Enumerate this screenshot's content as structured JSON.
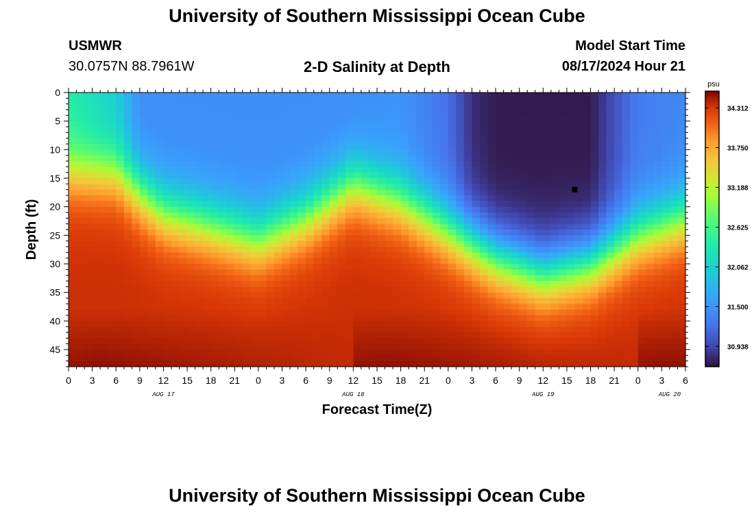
{
  "header": {
    "title": "University of Southern Mississippi Ocean Cube",
    "station": "USMWR",
    "coordinates": "30.0757N  88.7961W",
    "plot_title": "2-D Salinity at Depth",
    "model_start_label": "Model Start Time",
    "model_start_value": "08/17/2024 Hour 21"
  },
  "footer": {
    "title": "University of Southern Mississippi Ocean Cube"
  },
  "chart_data": {
    "type": "heatmap",
    "title": "2-D Salinity at Depth",
    "xlabel": "Forecast Time(Z)",
    "ylabel": "Depth (ft)",
    "x_tick_labels": [
      "0",
      "3",
      "6",
      "9",
      "12",
      "15",
      "18",
      "21",
      "0",
      "3",
      "6",
      "9",
      "12",
      "15",
      "18",
      "21",
      "0",
      "3",
      "6",
      "9",
      "12",
      "15",
      "18",
      "21",
      "0",
      "3",
      "6"
    ],
    "x_range_hours": [
      0,
      78
    ],
    "day_labels": [
      {
        "label": "AUG 17",
        "hour": 12
      },
      {
        "label": "AUG 18",
        "hour": 36
      },
      {
        "label": "AUG 19",
        "hour": 60
      },
      {
        "label": "AUG 20",
        "hour": 76
      }
    ],
    "y_ticks": [
      0,
      5,
      10,
      15,
      20,
      25,
      30,
      35,
      40,
      45
    ],
    "y_range": [
      0,
      48
    ],
    "y_inverted": true,
    "colorbar": {
      "units": "psu",
      "ticks": [
        34.312,
        33.75,
        33.188,
        32.625,
        32.062,
        31.5,
        30.938
      ],
      "range": [
        30.65,
        34.55
      ]
    },
    "surface_salinity_by_hour": [
      [
        0,
        32.4
      ],
      [
        6,
        32.0
      ],
      [
        9,
        31.45
      ],
      [
        24,
        31.45
      ],
      [
        36,
        31.45
      ],
      [
        42,
        31.5
      ],
      [
        48,
        31.2
      ],
      [
        51,
        30.8
      ],
      [
        54,
        30.7
      ],
      [
        60,
        30.7
      ],
      [
        66,
        30.7
      ],
      [
        69,
        31.0
      ],
      [
        72,
        31.3
      ],
      [
        78,
        31.4
      ]
    ],
    "mixed_layer_depth_ft_by_hour": [
      [
        0,
        14
      ],
      [
        6,
        14
      ],
      [
        12,
        21
      ],
      [
        24,
        26
      ],
      [
        30,
        22
      ],
      [
        36,
        16
      ],
      [
        42,
        19
      ],
      [
        48,
        24
      ],
      [
        54,
        29
      ],
      [
        60,
        32
      ],
      [
        66,
        30
      ],
      [
        72,
        25
      ],
      [
        78,
        22
      ]
    ],
    "bottom_salinity": 34.35,
    "low_salinity_core": {
      "hour_range": [
        48,
        68
      ],
      "depth_range_ft": [
        0,
        20
      ],
      "value": 30.7
    },
    "marker": {
      "hour": 64,
      "depth_ft": 17
    },
    "grid": false
  }
}
